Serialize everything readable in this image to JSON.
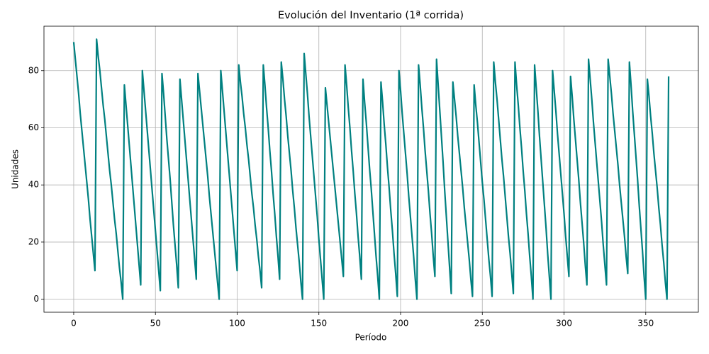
{
  "chart_data": {
    "type": "line",
    "title": "Evolución del Inventario (1ª corrida)",
    "x_label": "Período",
    "y_label": "Unidades",
    "color": "#008080",
    "grid": true,
    "xlim": [
      -18.2,
      382.2
    ],
    "ylim": [
      -4.55,
      95.55
    ],
    "xticks": [
      0,
      50,
      100,
      150,
      200,
      250,
      300,
      350
    ],
    "yticks": [
      0,
      20,
      40,
      60,
      80
    ],
    "x": [
      0,
      1,
      2,
      3,
      4,
      5,
      6,
      7,
      8,
      9,
      10,
      11,
      12,
      13,
      14,
      15,
      16,
      17,
      18,
      19,
      20,
      21,
      22,
      23,
      24,
      25,
      26,
      27,
      28,
      29,
      30,
      31,
      32,
      33,
      34,
      35,
      36,
      37,
      38,
      39,
      40,
      41,
      42,
      43,
      44,
      45,
      46,
      47,
      48,
      49,
      50,
      51,
      52,
      53,
      54,
      55,
      56,
      57,
      58,
      59,
      60,
      61,
      62,
      63,
      64,
      65,
      66,
      67,
      68,
      69,
      70,
      71,
      72,
      73,
      74,
      75,
      76,
      77,
      78,
      79,
      80,
      81,
      82,
      83,
      84,
      85,
      86,
      87,
      88,
      89,
      90,
      91,
      92,
      93,
      94,
      95,
      96,
      97,
      98,
      99,
      100,
      101,
      102,
      103,
      104,
      105,
      106,
      107,
      108,
      109,
      110,
      111,
      112,
      113,
      114,
      115,
      116,
      117,
      118,
      119,
      120,
      121,
      122,
      123,
      124,
      125,
      126,
      127,
      128,
      129,
      130,
      131,
      132,
      133,
      134,
      135,
      136,
      137,
      138,
      139,
      140,
      141,
      142,
      143,
      144,
      145,
      146,
      147,
      148,
      149,
      150,
      151,
      152,
      153,
      154,
      155,
      156,
      157,
      158,
      159,
      160,
      161,
      162,
      163,
      164,
      165,
      166,
      167,
      168,
      169,
      170,
      171,
      172,
      173,
      174,
      175,
      176,
      177,
      178,
      179,
      180,
      181,
      182,
      183,
      184,
      185,
      186,
      187,
      188,
      189,
      190,
      191,
      192,
      193,
      194,
      195,
      196,
      197,
      198,
      199,
      200,
      201,
      202,
      203,
      204,
      205,
      206,
      207,
      208,
      209,
      210,
      211,
      212,
      213,
      214,
      215,
      216,
      217,
      218,
      219,
      220,
      221,
      222,
      223,
      224,
      225,
      226,
      227,
      228,
      229,
      230,
      231,
      232,
      233,
      234,
      235,
      236,
      237,
      238,
      239,
      240,
      241,
      242,
      243,
      244,
      245,
      246,
      247,
      248,
      249,
      250,
      251,
      252,
      253,
      254,
      255,
      256,
      257,
      258,
      259,
      260,
      261,
      262,
      263,
      264,
      265,
      266,
      267,
      268,
      269,
      270,
      271,
      272,
      273,
      274,
      275,
      276,
      277,
      278,
      279,
      280,
      281,
      282,
      283,
      284,
      285,
      286,
      287,
      288,
      289,
      290,
      291,
      292,
      293,
      294,
      295,
      296,
      297,
      298,
      299,
      300,
      301,
      302,
      303,
      304,
      305,
      306,
      307,
      308,
      309,
      310,
      311,
      312,
      313,
      314,
      315,
      316,
      317,
      318,
      319,
      320,
      321,
      322,
      323,
      324,
      325,
      326,
      327,
      328,
      329,
      330,
      331,
      332,
      333,
      334,
      335,
      336,
      337,
      338,
      339,
      340,
      341,
      342,
      343,
      344,
      345,
      346,
      347,
      348,
      349,
      350,
      351,
      352,
      353,
      354,
      355,
      356,
      357,
      358,
      359,
      360,
      361,
      362,
      363,
      364
    ],
    "values": [
      90,
      84,
      78,
      72,
      65,
      59,
      53,
      47,
      41,
      35,
      28,
      22,
      16,
      10,
      91,
      85,
      80,
      74,
      68,
      63,
      57,
      51,
      45,
      40,
      34,
      28,
      23,
      17,
      11,
      6,
      0,
      75,
      68,
      61,
      54,
      47,
      40,
      33,
      26,
      19,
      12,
      5,
      80,
      73,
      66,
      59,
      52,
      45,
      38,
      31,
      24,
      17,
      10,
      3,
      79,
      72,
      64,
      56,
      49,
      42,
      34,
      26,
      19,
      12,
      4,
      77,
      70,
      63,
      56,
      49,
      42,
      35,
      28,
      21,
      14,
      7,
      79,
      73,
      67,
      61,
      55,
      49,
      43,
      36,
      30,
      24,
      18,
      12,
      6,
      0,
      80,
      73,
      66,
      59,
      52,
      45,
      38,
      31,
      24,
      17,
      10,
      82,
      76,
      71,
      65,
      60,
      54,
      49,
      43,
      37,
      32,
      26,
      21,
      15,
      10,
      4,
      82,
      75,
      67,
      60,
      52,
      45,
      37,
      30,
      22,
      15,
      7,
      83,
      77,
      70,
      64,
      57,
      51,
      45,
      38,
      32,
      25,
      19,
      13,
      6,
      0,
      86,
      79,
      72,
      64,
      57,
      50,
      43,
      36,
      29,
      21,
      14,
      7,
      0,
      74,
      68,
      62,
      56,
      50,
      44,
      38,
      32,
      26,
      20,
      14,
      8,
      82,
      75,
      67,
      60,
      52,
      45,
      37,
      30,
      22,
      15,
      7,
      77,
      69,
      62,
      54,
      46,
      39,
      31,
      23,
      15,
      8,
      0,
      76,
      69,
      61,
      54,
      46,
      39,
      31,
      24,
      16,
      9,
      1,
      80,
      73,
      65,
      58,
      51,
      44,
      36,
      29,
      22,
      15,
      7,
      0,
      82,
      75,
      67,
      60,
      52,
      45,
      38,
      30,
      23,
      15,
      8,
      84,
      75,
      66,
      57,
      48,
      38,
      29,
      20,
      11,
      2,
      76,
      70,
      64,
      57,
      51,
      45,
      39,
      32,
      26,
      20,
      14,
      7,
      1,
      75,
      68,
      62,
      55,
      48,
      41,
      35,
      28,
      21,
      14,
      8,
      1,
      83,
      76,
      70,
      63,
      56,
      49,
      43,
      36,
      29,
      22,
      16,
      9,
      2,
      83,
      75,
      68,
      60,
      53,
      45,
      38,
      30,
      23,
      15,
      8,
      0,
      82,
      74,
      66,
      57,
      49,
      41,
      33,
      25,
      16,
      8,
      0,
      80,
      73,
      66,
      58,
      51,
      44,
      37,
      30,
      22,
      15,
      8,
      78,
      71,
      63,
      56,
      49,
      42,
      34,
      27,
      20,
      12,
      5,
      84,
      77,
      70,
      62,
      55,
      48,
      41,
      34,
      27,
      19,
      12,
      5,
      84,
      78,
      72,
      65,
      59,
      53,
      47,
      40,
      34,
      28,
      22,
      15,
      9,
      83,
      75,
      66,
      58,
      50,
      42,
      33,
      25,
      17,
      8,
      0,
      77,
      71,
      64,
      58,
      51,
      45,
      39,
      32,
      26,
      19,
      13,
      6,
      0,
      78
    ]
  }
}
